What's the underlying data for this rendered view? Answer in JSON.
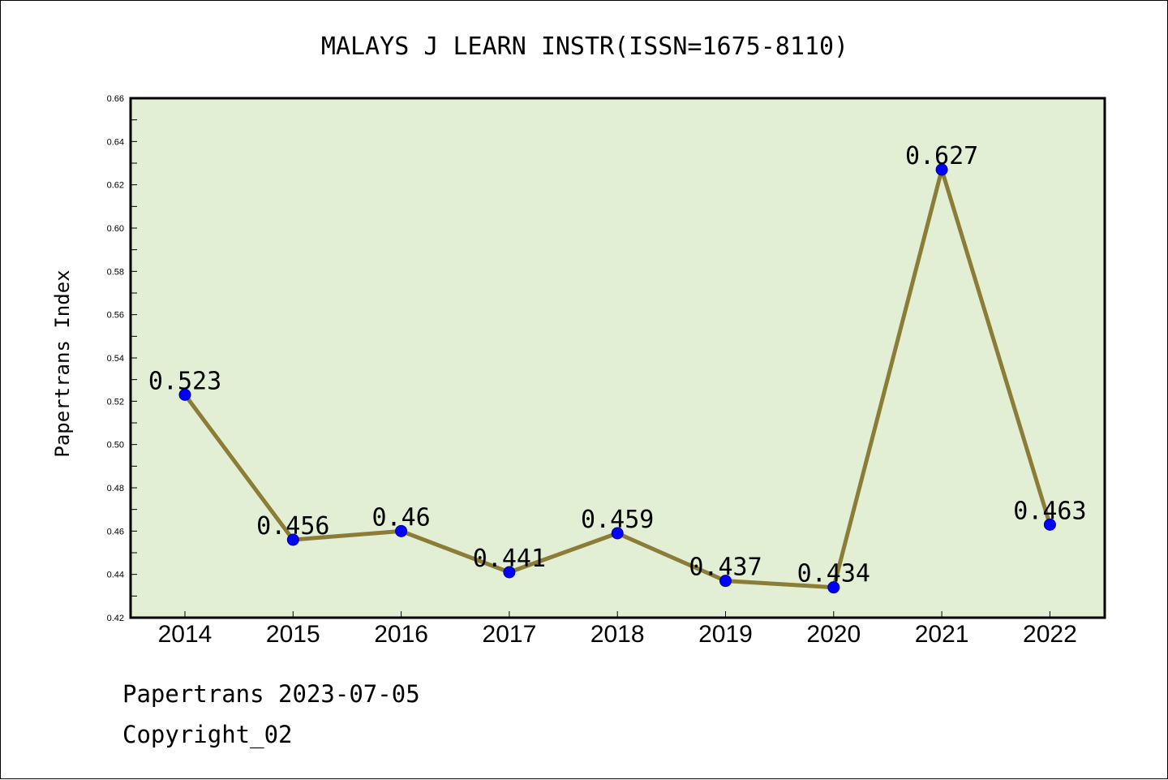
{
  "chart_data": {
    "type": "line",
    "title": "MALAYS J LEARN INSTR(ISSN=1675-8110)",
    "ylabel": "Papertrans Index",
    "xlabel": "",
    "categories": [
      "2014",
      "2015",
      "2016",
      "2017",
      "2018",
      "2019",
      "2020",
      "2021",
      "2022"
    ],
    "series": [
      {
        "values": [
          0.523,
          0.456,
          0.46,
          0.441,
          0.459,
          0.437,
          0.434,
          0.627,
          0.463
        ],
        "labels": [
          "0.523",
          "0.456",
          "0.46",
          "0.441",
          "0.459",
          "0.437",
          "0.434",
          "0.627",
          "0.463"
        ]
      }
    ],
    "ylim": [
      0.42,
      0.66
    ],
    "yticks": [
      "0.42",
      "0.44",
      "0.46",
      "0.48",
      "0.50",
      "0.52",
      "0.54",
      "0.56",
      "0.58",
      "0.60",
      "0.62",
      "0.64",
      "0.66"
    ],
    "grid": false,
    "legend": "none",
    "colors": {
      "plot_background": "#e2efd5",
      "line": "#8b7d37",
      "marker": "#0000ff"
    }
  },
  "footer": {
    "line1": "Papertrans 2023-07-05",
    "line2": "Copyright_02"
  }
}
